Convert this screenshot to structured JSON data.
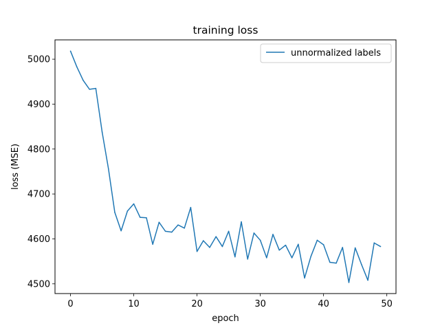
{
  "chart_data": {
    "type": "line",
    "title": "training loss",
    "xlabel": "epoch",
    "ylabel": "loss (MSE)",
    "xlim": [
      -2.45,
      51.45
    ],
    "ylim": [
      4478.3,
      5043.0
    ],
    "xticks": [
      0,
      10,
      20,
      30,
      40,
      50
    ],
    "yticks": [
      4500,
      4600,
      4700,
      4800,
      4900,
      5000
    ],
    "grid": false,
    "legend_position": "top-right",
    "colors": {
      "series": "#1f77b4",
      "axes": "#000000",
      "legend_border": "#cccccc"
    },
    "series": [
      {
        "name": "unnormalized labels",
        "x": [
          0,
          1,
          2,
          3,
          4,
          5,
          6,
          7,
          8,
          9,
          10,
          11,
          12,
          13,
          14,
          15,
          16,
          17,
          18,
          19,
          20,
          21,
          22,
          23,
          24,
          25,
          26,
          27,
          28,
          29,
          30,
          31,
          32,
          33,
          34,
          35,
          36,
          37,
          38,
          39,
          40,
          41,
          42,
          43,
          44,
          45,
          46,
          47,
          48,
          49
        ],
        "values": [
          5018,
          4983,
          4953,
          4933,
          4935,
          4838,
          4756,
          4659,
          4618,
          4662,
          4678,
          4648,
          4647,
          4588,
          4637,
          4617,
          4615,
          4631,
          4624,
          4670,
          4572,
          4596,
          4581,
          4605,
          4583,
          4617,
          4560,
          4638,
          4555,
          4613,
          4597,
          4558,
          4610,
          4575,
          4586,
          4558,
          4588,
          4513,
          4561,
          4597,
          4587,
          4548,
          4546,
          4581,
          4503,
          4580,
          4543,
          4508,
          4591,
          4583
        ]
      }
    ]
  }
}
